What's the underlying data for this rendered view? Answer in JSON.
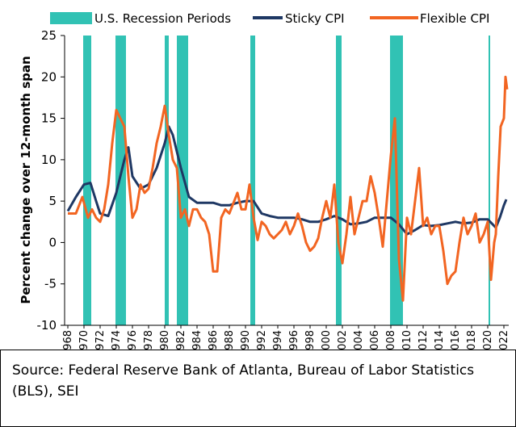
{
  "chart_data": {
    "type": "line",
    "y_label": "Percent change over 12-month span",
    "source": "Source: Federal Reserve Bank of Atlanta, Bureau of Labor Statistics (BLS), SEI",
    "xlim": [
      1967.6,
      2022.6
    ],
    "xticks": [
      1968,
      1970,
      1972,
      1974,
      1976,
      1978,
      1980,
      1982,
      1984,
      1986,
      1988,
      1990,
      1992,
      1994,
      1996,
      1998,
      2000,
      2002,
      2004,
      2006,
      2008,
      2010,
      2012,
      2014,
      2016,
      2018,
      2020,
      2022
    ],
    "ylim": [
      -10,
      25
    ],
    "yticks": [
      -10,
      -5,
      0,
      5,
      10,
      15,
      20,
      25
    ],
    "recession_name": "U.S. Recession Periods",
    "recession_color": "#31c2b4",
    "recessions": [
      [
        1969.9,
        1970.9
      ],
      [
        1973.9,
        1975.2
      ],
      [
        1980.0,
        1980.5
      ],
      [
        1981.5,
        1982.9
      ],
      [
        1990.6,
        1991.2
      ],
      [
        2001.2,
        2001.9
      ],
      [
        2007.9,
        2009.5
      ],
      [
        2020.1,
        2020.3
      ]
    ],
    "series": [
      {
        "name": "Sticky CPI",
        "color": "#1f3864",
        "x": [
          1968,
          1969,
          1970,
          1970.8,
          1971.5,
          1972,
          1973,
          1974,
          1975,
          1975.5,
          1976,
          1977,
          1978,
          1979,
          1980,
          1980.5,
          1981,
          1982,
          1983,
          1984,
          1985,
          1986,
          1987,
          1988,
          1989,
          1990,
          1991,
          1992,
          1993,
          1994,
          1995,
          1996,
          1997,
          1998,
          1999,
          2000,
          2001,
          2002,
          2003,
          2004,
          2005,
          2006,
          2007,
          2008,
          2009,
          2010,
          2011,
          2012,
          2013,
          2014,
          2015,
          2016,
          2017,
          2018,
          2019,
          2020,
          2020.5,
          2021,
          2021.5,
          2022,
          2022.3
        ],
        "values": [
          3.8,
          5.5,
          7,
          7.2,
          5,
          3.5,
          3.2,
          6,
          10,
          11.5,
          8,
          6.5,
          7,
          9,
          12,
          14,
          13,
          9,
          5.5,
          4.8,
          4.8,
          4.8,
          4.5,
          4.5,
          4.8,
          5,
          5,
          3.5,
          3.2,
          3,
          3,
          3,
          2.8,
          2.5,
          2.5,
          2.8,
          3.2,
          2.8,
          2.2,
          2.3,
          2.5,
          3,
          3,
          3,
          2.2,
          1,
          1.5,
          2.1,
          2,
          2.1,
          2.3,
          2.5,
          2.3,
          2.4,
          2.8,
          2.8,
          2.3,
          1.8,
          3,
          4.5,
          5.2
        ]
      },
      {
        "name": "Flexible CPI",
        "color": "#f26522",
        "x": [
          1968,
          1969,
          1969.8,
          1970.5,
          1971,
          1971.5,
          1972,
          1972.5,
          1973,
          1973.5,
          1974,
          1974.5,
          1975,
          1975.5,
          1976,
          1976.5,
          1977,
          1977.5,
          1978,
          1978.5,
          1979,
          1979.5,
          1980,
          1980.5,
          1981,
          1981.5,
          1982,
          1982.5,
          1983,
          1983.5,
          1984,
          1984.5,
          1985,
          1985.5,
          1986,
          1986.5,
          1987,
          1987.5,
          1988,
          1989,
          1989.5,
          1990,
          1990.5,
          1991,
          1991.5,
          1992,
          1992.5,
          1993,
          1993.5,
          1994,
          1994.5,
          1995,
          1995.5,
          1996,
          1996.5,
          1997,
          1997.5,
          1998,
          1998.5,
          1999,
          1999.5,
          2000,
          2000.5,
          2001,
          2001.5,
          2002,
          2002.5,
          2003,
          2003.5,
          2004,
          2004.5,
          2005,
          2005.5,
          2006,
          2006.5,
          2007,
          2007.5,
          2008,
          2008.5,
          2009,
          2009.5,
          2010,
          2010.5,
          2011,
          2011.5,
          2012,
          2012.5,
          2013,
          2013.5,
          2014,
          2014.5,
          2015,
          2015.5,
          2016,
          2016.5,
          2017,
          2017.5,
          2018,
          2018.5,
          2019,
          2019.5,
          2020,
          2020.4,
          2020.8,
          2021,
          2021.3,
          2021.6,
          2022,
          2022.2,
          2022.4
        ],
        "values": [
          3.5,
          3.5,
          5.5,
          3,
          4,
          3,
          2.5,
          4,
          7,
          12,
          16,
          15,
          14,
          8,
          3,
          4,
          7,
          6,
          6.5,
          9,
          12,
          14,
          16.5,
          13,
          10,
          9,
          3,
          4,
          2,
          4,
          4,
          3,
          2.5,
          1,
          -3.5,
          -3.5,
          3,
          4,
          3.5,
          6,
          4,
          4,
          7,
          3,
          0.3,
          2.5,
          2,
          1,
          0.5,
          1,
          1.5,
          2.5,
          1,
          2,
          3.5,
          2,
          0,
          -1,
          -0.5,
          0.5,
          3,
          5,
          3,
          7,
          0,
          -2.5,
          1,
          5.5,
          1,
          3,
          5,
          5,
          8,
          6,
          3,
          -0.5,
          5,
          10.5,
          15,
          -2,
          -7,
          3,
          1,
          5,
          9,
          2,
          3,
          1,
          2,
          2,
          -1,
          -5,
          -4,
          -3.5,
          0,
          3,
          1,
          2,
          3.5,
          0,
          1,
          2.5,
          -4.5,
          0,
          1,
          8,
          14,
          15,
          20,
          18.5
        ]
      }
    ]
  }
}
